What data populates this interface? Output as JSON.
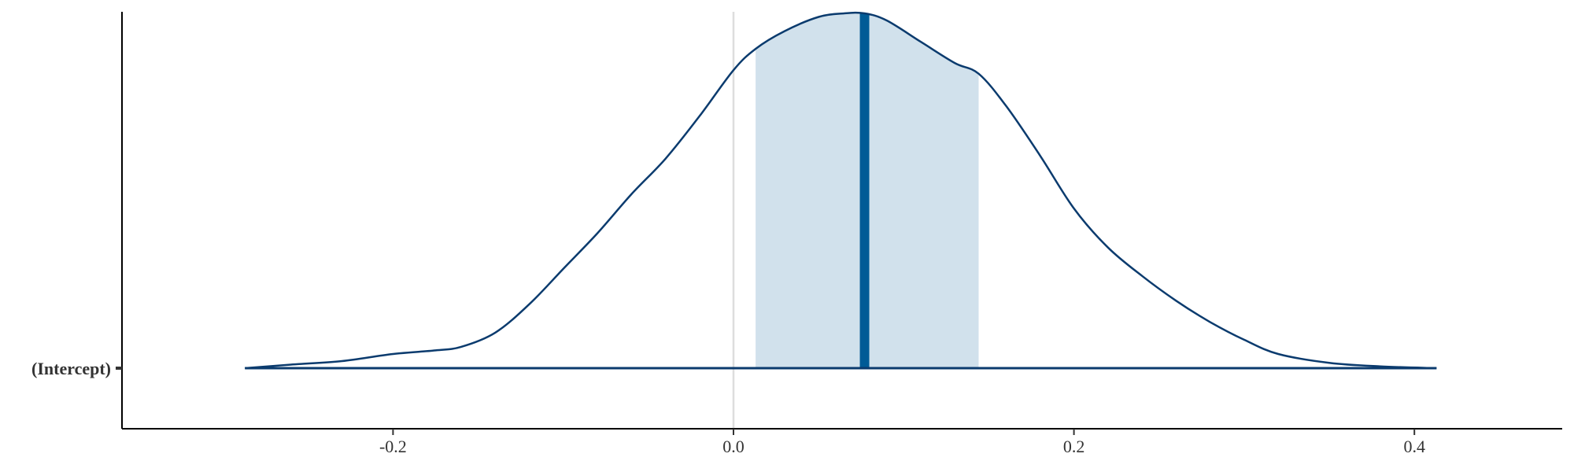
{
  "chart_data": {
    "type": "area",
    "xlim": [
      -0.35,
      0.49
    ],
    "x_ticks": [
      -0.2,
      0.0,
      0.2,
      0.4
    ],
    "x_tick_labels": [
      "-0.2",
      "0.0",
      "0.2",
      "0.4"
    ],
    "y_categories": [
      "(Intercept)"
    ],
    "reference_line_x": 0.0,
    "point_estimate": 0.077,
    "interval": [
      0.013,
      0.144
    ],
    "range": [
      -0.287,
      0.413
    ],
    "density": {
      "x": [
        -0.287,
        -0.26,
        -0.23,
        -0.2,
        -0.175,
        -0.16,
        -0.14,
        -0.12,
        -0.1,
        -0.08,
        -0.06,
        -0.04,
        -0.02,
        0.0,
        0.013,
        0.03,
        0.05,
        0.065,
        0.077,
        0.09,
        0.11,
        0.13,
        0.144,
        0.16,
        0.18,
        0.2,
        0.22,
        0.24,
        0.26,
        0.28,
        0.3,
        0.32,
        0.35,
        0.38,
        0.413
      ],
      "y": [
        0.0,
        0.01,
        0.02,
        0.04,
        0.05,
        0.06,
        0.1,
        0.18,
        0.28,
        0.38,
        0.49,
        0.59,
        0.71,
        0.84,
        0.9,
        0.95,
        0.99,
        1.0,
        1.0,
        0.98,
        0.92,
        0.86,
        0.83,
        0.74,
        0.6,
        0.45,
        0.34,
        0.26,
        0.19,
        0.13,
        0.08,
        0.04,
        0.015,
        0.005,
        0.0
      ]
    },
    "colors": {
      "line": "#0b3b6e",
      "interval_fill": "#d1e1ec",
      "point_line": "#005b96",
      "ref_line": "#dddddd",
      "axis": "#000000"
    }
  }
}
